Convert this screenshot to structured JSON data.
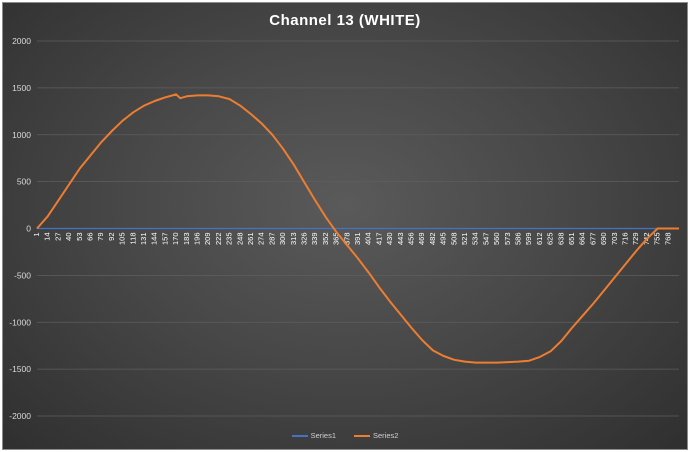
{
  "chart_data": {
    "type": "line",
    "title": "Channel 13 (WHITE)",
    "xlabel": "",
    "ylabel": "",
    "ylim": [
      -2000,
      2000
    ],
    "yticks": [
      2000,
      1500,
      1000,
      500,
      0,
      -500,
      -1000,
      -1500,
      -2000
    ],
    "xlim": [
      1,
      781
    ],
    "xtick_labels": [
      "1",
      "14",
      "27",
      "40",
      "53",
      "66",
      "79",
      "92",
      "105",
      "118",
      "131",
      "144",
      "157",
      "170",
      "183",
      "196",
      "209",
      "222",
      "235",
      "248",
      "261",
      "274",
      "287",
      "300",
      "313",
      "326",
      "339",
      "352",
      "365",
      "378",
      "391",
      "404",
      "417",
      "430",
      "443",
      "456",
      "469",
      "482",
      "495",
      "508",
      "521",
      "534",
      "547",
      "560",
      "573",
      "586",
      "599",
      "612",
      "625",
      "638",
      "651",
      "664",
      "677",
      "690",
      "703",
      "716",
      "729",
      "742",
      "755",
      "768"
    ],
    "grid": true,
    "legend": "bottom",
    "series": [
      {
        "name": "Series1",
        "color": "#4472c4",
        "x": [
          1,
          781
        ],
        "values": [
          0,
          0
        ]
      },
      {
        "name": "Series2",
        "color": "#ed7d31",
        "x": [
          1,
          14,
          27,
          40,
          53,
          66,
          79,
          92,
          105,
          118,
          131,
          144,
          157,
          170,
          175,
          183,
          196,
          209,
          222,
          235,
          248,
          261,
          274,
          287,
          300,
          313,
          326,
          339,
          352,
          365,
          378,
          391,
          404,
          417,
          430,
          443,
          456,
          469,
          482,
          495,
          508,
          521,
          534,
          547,
          560,
          573,
          586,
          599,
          612,
          625,
          638,
          651,
          664,
          677,
          690,
          703,
          716,
          729,
          742,
          755,
          768,
          781
        ],
        "values": [
          0,
          130,
          300,
          470,
          640,
          780,
          920,
          1040,
          1150,
          1240,
          1310,
          1360,
          1400,
          1430,
          1390,
          1410,
          1420,
          1420,
          1410,
          1380,
          1310,
          1220,
          1120,
          1000,
          850,
          680,
          490,
          300,
          120,
          -40,
          -180,
          -320,
          -470,
          -630,
          -780,
          -920,
          -1060,
          -1190,
          -1300,
          -1360,
          -1400,
          -1420,
          -1430,
          -1430,
          -1430,
          -1425,
          -1420,
          -1410,
          -1370,
          -1310,
          -1200,
          -1060,
          -930,
          -800,
          -660,
          -520,
          -380,
          -240,
          -110,
          0,
          0,
          0
        ]
      }
    ]
  }
}
